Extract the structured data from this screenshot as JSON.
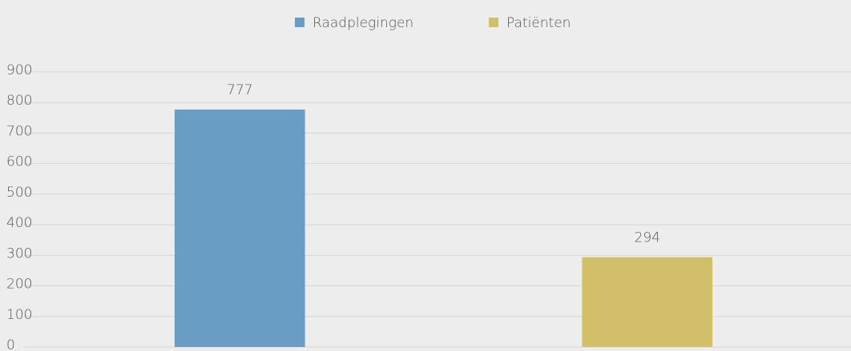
{
  "chart_data": {
    "type": "bar",
    "categories": [
      null
    ],
    "series": [
      {
        "name": "Raadplegingen",
        "color": "#6a9dc3",
        "values": [
          777
        ]
      },
      {
        "name": "Patiënten",
        "color": "#d1bf69",
        "values": [
          294
        ]
      }
    ],
    "ylim": [
      0,
      900
    ],
    "yticks": [
      0,
      100,
      200,
      300,
      400,
      500,
      600,
      700,
      800,
      900
    ],
    "grid": true,
    "legend": "top"
  }
}
